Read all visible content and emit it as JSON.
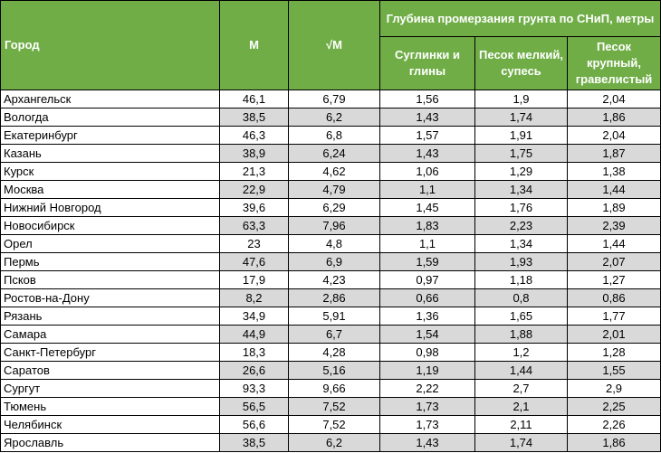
{
  "header": {
    "city": "Город",
    "m": "M",
    "sqrt_m": "√M",
    "depth_group": "Глубина промерзания грунта по СНиП, метры",
    "loam": "Суглинки и глины",
    "fine_sand": "Песок мелкий, супесь",
    "coarse_sand": "Песок крупный, гравелистый"
  },
  "rows": [
    {
      "city": "Архангельск",
      "m": "46,1",
      "sqrt_m": "6,79",
      "loam": "1,56",
      "fine": "1,9",
      "coarse": "2,04"
    },
    {
      "city": "Вологда",
      "m": "38,5",
      "sqrt_m": "6,2",
      "loam": "1,43",
      "fine": "1,74",
      "coarse": "1,86"
    },
    {
      "city": "Екатеринбург",
      "m": "46,3",
      "sqrt_m": "6,8",
      "loam": "1,57",
      "fine": "1,91",
      "coarse": "2,04"
    },
    {
      "city": "Казань",
      "m": "38,9",
      "sqrt_m": "6,24",
      "loam": "1,43",
      "fine": "1,75",
      "coarse": "1,87"
    },
    {
      "city": "Курск",
      "m": "21,3",
      "sqrt_m": "4,62",
      "loam": "1,06",
      "fine": "1,29",
      "coarse": "1,38"
    },
    {
      "city": "Москва",
      "m": "22,9",
      "sqrt_m": "4,79",
      "loam": "1,1",
      "fine": "1,34",
      "coarse": "1,44"
    },
    {
      "city": "Нижний Новгород",
      "m": "39,6",
      "sqrt_m": "6,29",
      "loam": "1,45",
      "fine": "1,76",
      "coarse": "1,89"
    },
    {
      "city": "Новосибирск",
      "m": "63,3",
      "sqrt_m": "7,96",
      "loam": "1,83",
      "fine": "2,23",
      "coarse": "2,39"
    },
    {
      "city": "Орел",
      "m": "23",
      "sqrt_m": "4,8",
      "loam": "1,1",
      "fine": "1,34",
      "coarse": "1,44"
    },
    {
      "city": "Пермь",
      "m": "47,6",
      "sqrt_m": "6,9",
      "loam": "1,59",
      "fine": "1,93",
      "coarse": "2,07"
    },
    {
      "city": "Псков",
      "m": "17,9",
      "sqrt_m": "4,23",
      "loam": "0,97",
      "fine": "1,18",
      "coarse": "1,27"
    },
    {
      "city": "Ростов-на-Дону",
      "m": "8,2",
      "sqrt_m": "2,86",
      "loam": "0,66",
      "fine": "0,8",
      "coarse": "0,86"
    },
    {
      "city": "Рязань",
      "m": "34,9",
      "sqrt_m": "5,91",
      "loam": "1,36",
      "fine": "1,65",
      "coarse": "1,77"
    },
    {
      "city": "Самара",
      "m": "44,9",
      "sqrt_m": "6,7",
      "loam": "1,54",
      "fine": "1,88",
      "coarse": "2,01"
    },
    {
      "city": "Санкт-Петербург",
      "m": "18,3",
      "sqrt_m": "4,28",
      "loam": "0,98",
      "fine": "1,2",
      "coarse": "1,28"
    },
    {
      "city": "Саратов",
      "m": "26,6",
      "sqrt_m": "5,16",
      "loam": "1,19",
      "fine": "1,44",
      "coarse": "1,55"
    },
    {
      "city": "Сургут",
      "m": "93,3",
      "sqrt_m": "9,66",
      "loam": "2,22",
      "fine": "2,7",
      "coarse": "2,9"
    },
    {
      "city": "Тюмень",
      "m": "56,5",
      "sqrt_m": "7,52",
      "loam": "1,73",
      "fine": "2,1",
      "coarse": "2,25"
    },
    {
      "city": "Челябинск",
      "m": "56,6",
      "sqrt_m": "7,52",
      "loam": "1,73",
      "fine": "2,11",
      "coarse": "2,26"
    },
    {
      "city": "Ярославль",
      "m": "38,5",
      "sqrt_m": "6,2",
      "loam": "1,43",
      "fine": "1,74",
      "coarse": "1,86"
    }
  ],
  "colors": {
    "header_bg": "#70ad47",
    "header_text": "#ffffff",
    "shaded_cell": "#d9d9d9"
  }
}
